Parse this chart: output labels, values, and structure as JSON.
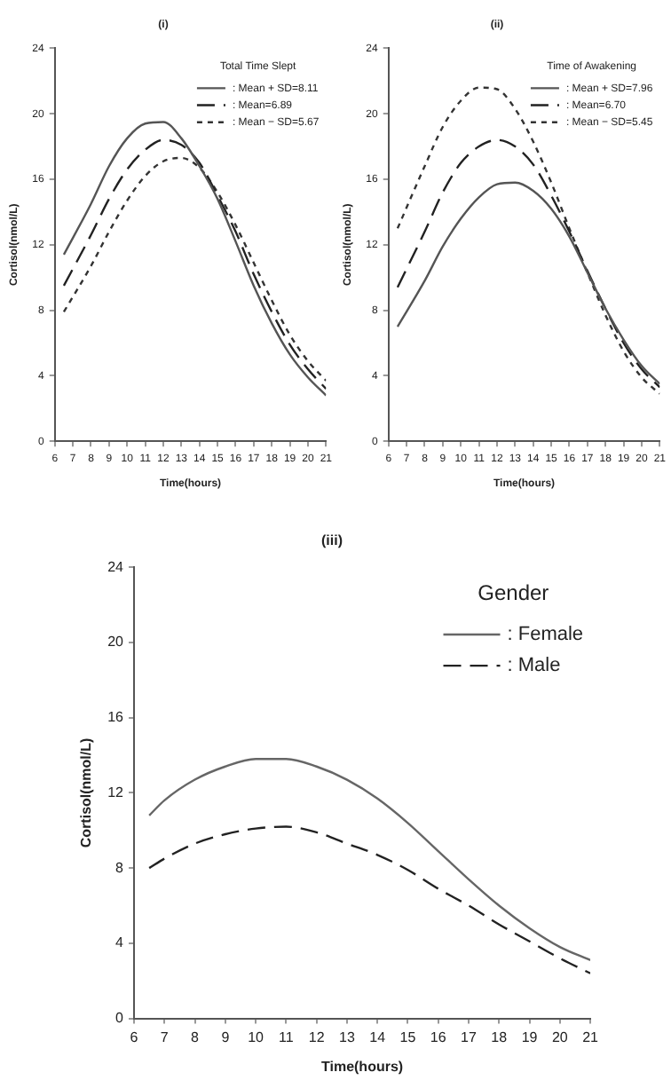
{
  "chart_data": [
    {
      "type": "line",
      "title": "(i)",
      "xlabel": "Time(hours)",
      "ylabel": "Cortisol(nmol/L)",
      "legend_title": "Total Time Slept",
      "legend": "top right",
      "grid": false,
      "marker": "none",
      "xlim": [
        6,
        21
      ],
      "ylim": [
        0,
        24
      ],
      "xticks": [
        6,
        7,
        8,
        9,
        10,
        11,
        12,
        13,
        14,
        15,
        16,
        17,
        18,
        19,
        20,
        21
      ],
      "yticks": [
        0,
        4,
        8,
        12,
        16,
        20,
        24
      ],
      "x": [
        6.5,
        8,
        9,
        10,
        11,
        12,
        13,
        14,
        15,
        16,
        17,
        18,
        19,
        20,
        21
      ],
      "series": [
        {
          "name": ": Mean + SD=8.11",
          "color": "#555555",
          "line_style": "solid",
          "values": [
            11.4,
            14.5,
            16.8,
            18.5,
            19.4,
            19.5,
            18.5,
            16.8,
            14.8,
            12.2,
            9.5,
            7.2,
            5.3,
            3.9,
            2.8
          ]
        },
        {
          "name": ": Mean=6.89",
          "color": "#222222",
          "line_style": "dashed",
          "values": [
            9.5,
            12.6,
            14.8,
            16.6,
            17.8,
            18.4,
            18.1,
            17.0,
            15.0,
            12.8,
            10.2,
            7.9,
            5.9,
            4.4,
            3.2
          ]
        },
        {
          "name": ": Mean − SD=5.67",
          "color": "#333333",
          "line_style": "dotted",
          "values": [
            7.9,
            10.7,
            12.8,
            14.7,
            16.2,
            17.1,
            17.3,
            16.7,
            15.2,
            13.2,
            10.9,
            8.6,
            6.5,
            4.9,
            3.7
          ]
        }
      ]
    },
    {
      "type": "line",
      "title": "(ii)",
      "xlabel": "Time(hours)",
      "ylabel": "Cortisol(nmol/L)",
      "legend_title": "Time of Awakening",
      "legend": "top right",
      "grid": false,
      "marker": "none",
      "xlim": [
        6,
        21
      ],
      "ylim": [
        0,
        24
      ],
      "xticks": [
        6,
        7,
        8,
        9,
        10,
        11,
        12,
        13,
        14,
        15,
        16,
        17,
        18,
        19,
        20,
        21
      ],
      "yticks": [
        0,
        4,
        8,
        12,
        16,
        20,
        24
      ],
      "x": [
        6.5,
        8,
        9,
        10,
        11,
        12,
        13,
        14,
        15,
        16,
        17,
        18,
        19,
        20,
        21
      ],
      "series": [
        {
          "name": ": Mean + SD=7.96",
          "color": "#555555",
          "line_style": "solid",
          "values": [
            7.0,
            9.8,
            11.9,
            13.6,
            14.9,
            15.7,
            15.8,
            15.3,
            14.2,
            12.5,
            10.3,
            8.1,
            6.2,
            4.6,
            3.5
          ]
        },
        {
          "name": ": Mean=6.70",
          "color": "#222222",
          "line_style": "dashed",
          "values": [
            9.4,
            12.8,
            15.2,
            17.0,
            18.0,
            18.4,
            18.0,
            16.9,
            15.0,
            12.8,
            10.4,
            8.1,
            6.0,
            4.4,
            3.3
          ]
        },
        {
          "name": ": Mean − SD=5.45",
          "color": "#333333",
          "line_style": "dotted",
          "values": [
            13.0,
            16.8,
            19.2,
            20.8,
            21.6,
            21.5,
            20.3,
            18.3,
            15.8,
            13.0,
            10.3,
            7.7,
            5.5,
            3.9,
            2.9
          ]
        }
      ]
    },
    {
      "type": "line",
      "title": "(iii)",
      "xlabel": "Time(hours)",
      "ylabel": "Cortisol(nmol/L)",
      "legend_title": "Gender",
      "legend": "top right",
      "grid": false,
      "marker": "none",
      "xlim": [
        6,
        21
      ],
      "ylim": [
        0,
        24
      ],
      "xticks": [
        6,
        7,
        8,
        9,
        10,
        11,
        12,
        13,
        14,
        15,
        16,
        17,
        18,
        19,
        20,
        21
      ],
      "yticks": [
        0,
        4,
        8,
        12,
        16,
        20,
        24
      ],
      "x": [
        6.5,
        7,
        8,
        9,
        10,
        11,
        12,
        13,
        14,
        15,
        16,
        17,
        18,
        19,
        20,
        21
      ],
      "series": [
        {
          "name": ": Female",
          "color": "#666666",
          "line_style": "solid",
          "values": [
            10.8,
            11.6,
            12.7,
            13.4,
            13.8,
            13.8,
            13.4,
            12.7,
            11.7,
            10.4,
            8.9,
            7.4,
            6.0,
            4.8,
            3.8,
            3.1
          ]
        },
        {
          "name": ": Male",
          "color": "#222222",
          "line_style": "dashed",
          "values": [
            8.0,
            8.5,
            9.3,
            9.8,
            10.1,
            10.2,
            9.9,
            9.3,
            8.7,
            7.9,
            6.9,
            6.0,
            5.0,
            4.1,
            3.2,
            2.4
          ]
        }
      ]
    }
  ]
}
